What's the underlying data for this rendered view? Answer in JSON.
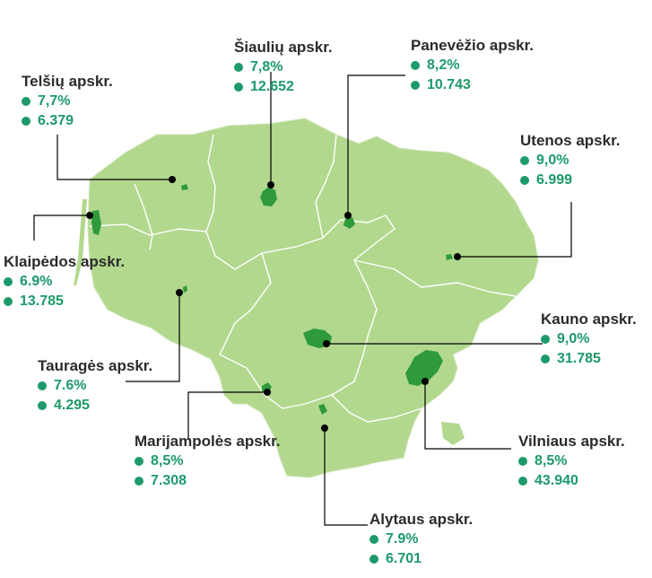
{
  "colors": {
    "land": "#b2d88e",
    "border": "#ffffff",
    "city": "#2e9a3c",
    "leader": "#000000",
    "accent": "#1c9a6a"
  },
  "regions": [
    {
      "id": "telsiai",
      "name": "Telšių apskr.",
      "rate": "7,7%",
      "count": "6.379"
    },
    {
      "id": "siauliai",
      "name": "Šiaulių apskr.",
      "rate": "7,8%",
      "count": "12.652"
    },
    {
      "id": "panevezys",
      "name": "Panevėžio apskr.",
      "rate": "8,2%",
      "count": "10.743"
    },
    {
      "id": "utena",
      "name": "Utenos apskr.",
      "rate": "9,0%",
      "count": "6.999"
    },
    {
      "id": "klaipeda",
      "name": "Klaipėdos apskr.",
      "rate": "6.9%",
      "count": "13.785"
    },
    {
      "id": "kaunas",
      "name": "Kauno apskr.",
      "rate": "9,0%",
      "count": "31.785"
    },
    {
      "id": "taurage",
      "name": "Tauragės apskr.",
      "rate": "7.6%",
      "count": "4.295"
    },
    {
      "id": "marijampole",
      "name": "Marijampolės apskr.",
      "rate": "8,5%",
      "count": "7.308"
    },
    {
      "id": "vilnius",
      "name": "Vilniaus apskr.",
      "rate": "8,5%",
      "count": "43.940"
    },
    {
      "id": "alytus",
      "name": "Alytaus apskr.",
      "rate": "7.9%",
      "count": "6.701"
    }
  ]
}
